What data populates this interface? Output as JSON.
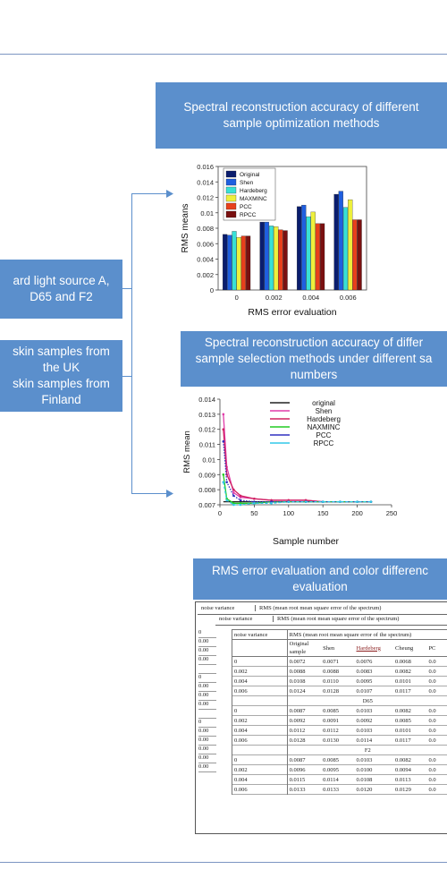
{
  "boxes": {
    "top_title": "Spectral reconstruction accuracy of different sample optimization methods",
    "light_line1": "ard light source A,",
    "light_line2": "D65 and F2",
    "skin_line1": "skin samples from",
    "skin_line2": "the UK",
    "skin_line3": "skin samples from",
    "skin_line4": "Finland",
    "mid_line1": "Spectral reconstruction accuracy of differ",
    "mid_line2": "sample selection methods under different sa",
    "mid_line3": "numbers",
    "bottom_line1": "RMS error evaluation and color differenc",
    "bottom_line2": "evaluation"
  },
  "chart_data": [
    {
      "type": "bar",
      "categories": [
        "0",
        "0.002",
        "0.004",
        "0.006"
      ],
      "series": [
        {
          "name": "Original",
          "color": "#0a1d6e",
          "values": [
            0.0072,
            0.0088,
            0.0108,
            0.0124
          ]
        },
        {
          "name": "Shen",
          "color": "#1f5fe0",
          "values": [
            0.0071,
            0.0088,
            0.011,
            0.0128
          ]
        },
        {
          "name": "Hardeberg",
          "color": "#38e0d6",
          "values": [
            0.0076,
            0.0083,
            0.0095,
            0.0107
          ]
        },
        {
          "name": "MAXMINC",
          "color": "#eef03c",
          "values": [
            0.0068,
            0.0082,
            0.0101,
            0.0117
          ]
        },
        {
          "name": "PCC",
          "color": "#e8401c",
          "values": [
            0.007,
            0.0078,
            0.0086,
            0.0091
          ]
        },
        {
          "name": "RPCC",
          "color": "#7a1010",
          "values": [
            0.007,
            0.0077,
            0.0086,
            0.0091
          ]
        }
      ],
      "xlabel": "RMS error evaluation",
      "ylabel": "RMS means",
      "ylim": [
        0,
        0.016
      ],
      "yticks": [
        "0",
        "0.002",
        "0.004",
        "0.006",
        "0.008",
        "0.01",
        "0.012",
        "0.014",
        "0.016"
      ],
      "legend": "top-left"
    },
    {
      "type": "line",
      "x": [
        5,
        10,
        20,
        30,
        50,
        75,
        100,
        125,
        150,
        175,
        200,
        220
      ],
      "series": [
        {
          "name": "original",
          "color": "#222222",
          "values": [
            0.0072,
            0.0072,
            0.0072,
            0.0072,
            0.0072,
            0.0072,
            0.0072,
            0.0072,
            0.0072,
            0.0072,
            0.0072,
            0.0072
          ]
        },
        {
          "name": "Shen",
          "color": "#e03ca8",
          "values": [
            0.013,
            0.0095,
            0.0078,
            0.0075,
            0.0074,
            0.0073,
            0.0073,
            0.0073,
            0.0072,
            0.0072,
            0.0072,
            0.0072
          ]
        },
        {
          "name": "Hardeberg",
          "color": "#d02060",
          "values": [
            0.012,
            0.009,
            0.008,
            0.0076,
            0.0074,
            0.0073,
            0.0073,
            0.0073,
            0.0072,
            0.0072,
            0.0072,
            0.0072
          ]
        },
        {
          "name": "NAXMINC",
          "color": "#22cc22",
          "values": [
            0.009,
            0.0074,
            0.0071,
            0.0071,
            0.0071,
            0.0072,
            0.0072,
            0.0072,
            0.0072,
            0.0072,
            0.0072,
            0.0072
          ]
        },
        {
          "name": "PCC",
          "color": "#3030c0",
          "values": [
            0.0112,
            0.0085,
            0.0076,
            0.0073,
            0.0072,
            0.0072,
            0.0072,
            0.0072,
            0.0072,
            0.0072,
            0.0072,
            0.0072
          ]
        },
        {
          "name": "RPCC",
          "color": "#30c8e8",
          "values": [
            0.0085,
            0.0073,
            0.007,
            0.007,
            0.0071,
            0.0071,
            0.0072,
            0.0072,
            0.0072,
            0.0072,
            0.0072,
            0.0072
          ]
        }
      ],
      "xlabel": "Sample number",
      "ylabel": "RMS mean",
      "xlim": [
        0,
        250
      ],
      "ylim": [
        0.007,
        0.014
      ],
      "xticks": [
        "0",
        "50",
        "100",
        "150",
        "200",
        "250"
      ],
      "yticks": [
        "0.007",
        "0.008",
        "0.009",
        "0.01",
        "0.011",
        "0.012",
        "0.013",
        "0.014"
      ],
      "legend": "top-right"
    },
    {
      "type": "table",
      "back_header": [
        "noise variance",
        "RMS (mean root mean square error of the spectrum)"
      ],
      "back_left_col": [
        "0",
        "0.00",
        "0.00",
        "0.00",
        "",
        "0",
        "0.00",
        "0.00",
        "0.00",
        "",
        "0",
        "0.00",
        "0.00",
        "0.00",
        "0.00",
        "0.00"
      ],
      "header": [
        "noise variance",
        "RMS (mean root mean square error of the spectrum)"
      ],
      "columns": [
        "Original sample",
        "Shen",
        "Hardeberg",
        "Cheung",
        "PC"
      ],
      "rows": [
        [
          "0",
          "0.0072",
          "0.0071",
          "0.0076",
          "0.0068",
          "0.0"
        ],
        [
          "0.002",
          "0.0088",
          "0.0088",
          "0.0083",
          "0.0082",
          "0.0"
        ],
        [
          "0.004",
          "0.0108",
          "0.0110",
          "0.0095",
          "0.0101",
          "0.0"
        ],
        [
          "0.006",
          "0.0124",
          "0.0128",
          "0.0107",
          "0.0117",
          "0.0"
        ],
        [
          "D65"
        ],
        [
          "0",
          "0.0087",
          "0.0085",
          "0.0103",
          "0.0082",
          "0.0"
        ],
        [
          "0.002",
          "0.0092",
          "0.0091",
          "0.0092",
          "0.0085",
          "0.0"
        ],
        [
          "0.004",
          "0.0112",
          "0.0112",
          "0.0103",
          "0.0101",
          "0.0"
        ],
        [
          "0.006",
          "0.0128",
          "0.0130",
          "0.0114",
          "0.0117",
          "0.0"
        ],
        [
          "F2"
        ],
        [
          "0",
          "0.0087",
          "0.0085",
          "0.0103",
          "0.0082",
          "0.0"
        ],
        [
          "0.002",
          "0.0096",
          "0.0095",
          "0.0100",
          "0.0094",
          "0.0"
        ],
        [
          "0.004",
          "0.0115",
          "0.0114",
          "0.0108",
          "0.0113",
          "0.0"
        ],
        [
          "0.006",
          "0.0133",
          "0.0133",
          "0.0120",
          "0.0129",
          "0.0"
        ]
      ]
    }
  ]
}
